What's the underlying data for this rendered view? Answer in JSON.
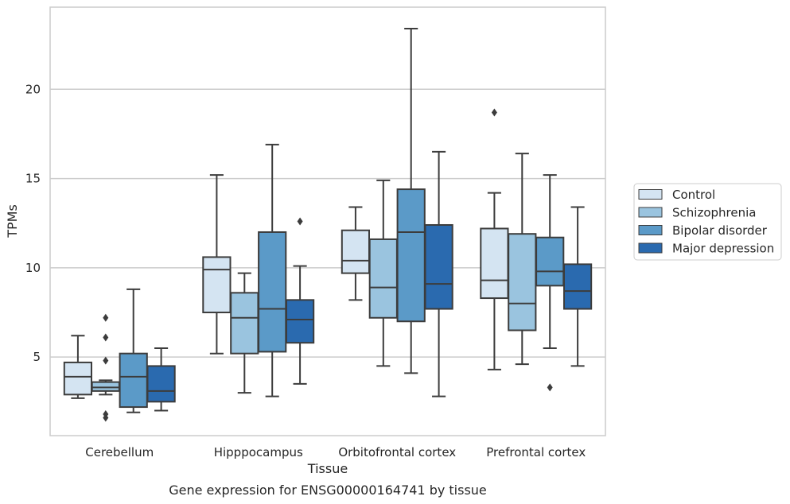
{
  "chart_data": {
    "type": "box",
    "xlabel": "Tissue",
    "ylabel": "TPMs",
    "caption": "Gene expression for ENSG00000164741 by tissue",
    "ylim": [
      0.6,
      24.6
    ],
    "yticks": [
      5,
      10,
      15,
      20
    ],
    "grid": "horizontal",
    "legend_position": "right",
    "categories": [
      "Cerebellum",
      "Hipppocampus",
      "Orbitofrontal cortex",
      "Prefrontal cortex"
    ],
    "series": [
      {
        "name": "Control",
        "color": "#d4e4f2",
        "boxes": [
          {
            "whislo": 2.7,
            "q1": 2.9,
            "med": 3.9,
            "q3": 4.7,
            "whishi": 6.2,
            "fliers": []
          },
          {
            "whislo": 5.2,
            "q1": 7.5,
            "med": 9.9,
            "q3": 10.6,
            "whishi": 15.2,
            "fliers": []
          },
          {
            "whislo": 8.2,
            "q1": 9.7,
            "med": 10.4,
            "q3": 12.1,
            "whishi": 13.4,
            "fliers": []
          },
          {
            "whislo": 4.3,
            "q1": 8.3,
            "med": 9.3,
            "q3": 12.2,
            "whishi": 14.2,
            "fliers": [
              18.7
            ]
          }
        ]
      },
      {
        "name": "Schizophrenia",
        "color": "#9ac4df",
        "boxes": [
          {
            "whislo": 2.9,
            "q1": 3.1,
            "med": 3.3,
            "q3": 3.6,
            "whishi": 3.7,
            "fliers": [
              7.2,
              6.1,
              4.8,
              1.8,
              1.6
            ]
          },
          {
            "whislo": 3.0,
            "q1": 5.2,
            "med": 7.2,
            "q3": 8.6,
            "whishi": 9.7,
            "fliers": []
          },
          {
            "whislo": 4.5,
            "q1": 7.2,
            "med": 8.9,
            "q3": 11.6,
            "whishi": 14.9,
            "fliers": []
          },
          {
            "whislo": 4.6,
            "q1": 6.5,
            "med": 8.0,
            "q3": 11.9,
            "whishi": 16.4,
            "fliers": []
          }
        ]
      },
      {
        "name": "Bipolar disorder",
        "color": "#5b9ac8",
        "boxes": [
          {
            "whislo": 1.9,
            "q1": 2.2,
            "med": 3.9,
            "q3": 5.2,
            "whishi": 8.8,
            "fliers": []
          },
          {
            "whislo": 2.8,
            "q1": 5.3,
            "med": 7.7,
            "q3": 12.0,
            "whishi": 16.9,
            "fliers": []
          },
          {
            "whislo": 4.1,
            "q1": 7.0,
            "med": 12.0,
            "q3": 14.4,
            "whishi": 23.4,
            "fliers": []
          },
          {
            "whislo": 5.5,
            "q1": 9.0,
            "med": 9.8,
            "q3": 11.7,
            "whishi": 15.2,
            "fliers": [
              3.3
            ]
          }
        ]
      },
      {
        "name": "Major depression",
        "color": "#2a6aaf",
        "boxes": [
          {
            "whislo": 2.0,
            "q1": 2.5,
            "med": 3.1,
            "q3": 4.5,
            "whishi": 5.5,
            "fliers": []
          },
          {
            "whislo": 3.5,
            "q1": 5.8,
            "med": 7.1,
            "q3": 8.2,
            "whishi": 10.1,
            "fliers": [
              12.6
            ]
          },
          {
            "whislo": 2.8,
            "q1": 7.7,
            "med": 9.1,
            "q3": 12.4,
            "whishi": 16.5,
            "fliers": []
          },
          {
            "whislo": 4.5,
            "q1": 7.7,
            "med": 8.7,
            "q3": 10.2,
            "whishi": 13.4,
            "fliers": []
          }
        ]
      }
    ]
  }
}
